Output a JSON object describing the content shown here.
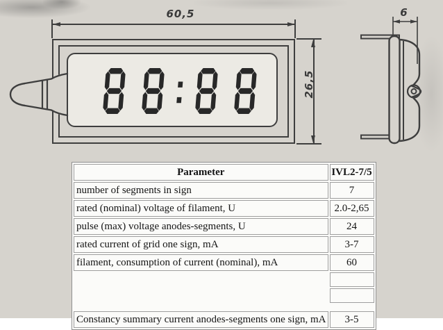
{
  "colors": {
    "paper": "#d6d3cd",
    "line": "#3e3e3e",
    "glass": "#eceae4",
    "digit": "#282828",
    "tborder": "#9e9e9e",
    "tablebg": "#fbfbf9",
    "ink": "#141414"
  },
  "drawing": {
    "display_value": "88:88",
    "width_label": "60,5",
    "height_label": "26,5",
    "depth_label": "6"
  },
  "table": {
    "header": {
      "parameter": "Parameter",
      "model": "IVL2-7/5"
    },
    "rows": [
      {
        "parameter": "number of segments in sign",
        "value": "7"
      },
      {
        "parameter": "rated (nominal) voltage of filament, U",
        "value": "2.0-2,65"
      },
      {
        "parameter": "pulse (max) voltage anodes-segments, U",
        "value": "24"
      },
      {
        "parameter": "rated current of grid one sign, mA",
        "value": "3-7"
      },
      {
        "parameter": "filament, consumption of current (nominal), mA",
        "value": "60"
      },
      {
        "parameter": "",
        "value": ""
      },
      {
        "parameter": "",
        "value": ""
      },
      {
        "parameter": "Constancy summary current anodes-segments one sign, mA",
        "value": "3-5"
      }
    ]
  }
}
